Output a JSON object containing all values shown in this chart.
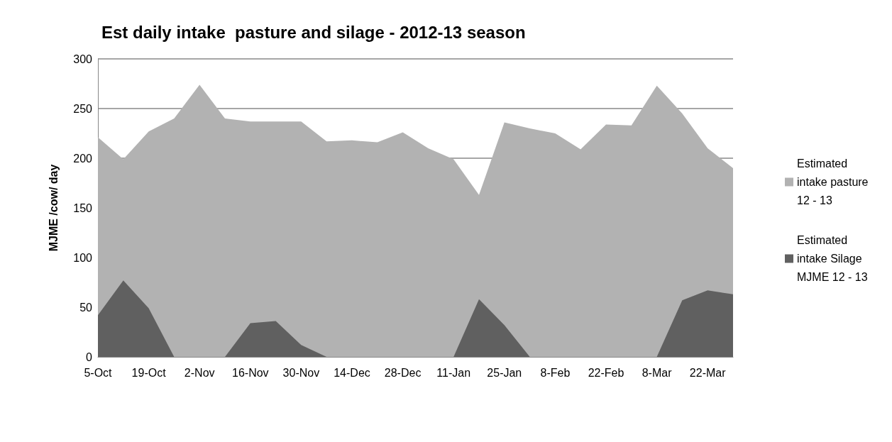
{
  "chart_data": {
    "type": "area",
    "title": "Est daily intake  pasture and silage - 2012-13 season",
    "ylabel": "MJME /cow/ day",
    "categories": [
      "5-Oct",
      null,
      "19-Oct",
      null,
      "2-Nov",
      null,
      "16-Nov",
      null,
      "30-Nov",
      null,
      "14-Dec",
      null,
      "28-Dec",
      null,
      "11-Jan",
      null,
      "25-Jan",
      null,
      "8-Feb",
      null,
      "22-Feb",
      null,
      "8-Mar",
      null,
      "22-Mar",
      null
    ],
    "series": [
      {
        "name": "Estimated intake pasture 12 - 13",
        "color": "#b2b2b2",
        "values": [
          221,
          199,
          227,
          240,
          274,
          240,
          237,
          237,
          237,
          217,
          218,
          216,
          226,
          210,
          199,
          163,
          236,
          230,
          225,
          209,
          234,
          233,
          273,
          245,
          210,
          190
        ]
      },
      {
        "name": "Estimated intake Silage MJME 12 - 13",
        "color": "#606060",
        "values": [
          42,
          77,
          49,
          0,
          0,
          0,
          34,
          36,
          12,
          0,
          0,
          0,
          0,
          0,
          0,
          58,
          32,
          0,
          0,
          0,
          0,
          0,
          0,
          57,
          67,
          63
        ]
      }
    ],
    "ylim": [
      0,
      300
    ],
    "yticks": [
      0,
      50,
      100,
      150,
      200,
      250,
      300
    ],
    "grid": "y",
    "legend": "right"
  }
}
